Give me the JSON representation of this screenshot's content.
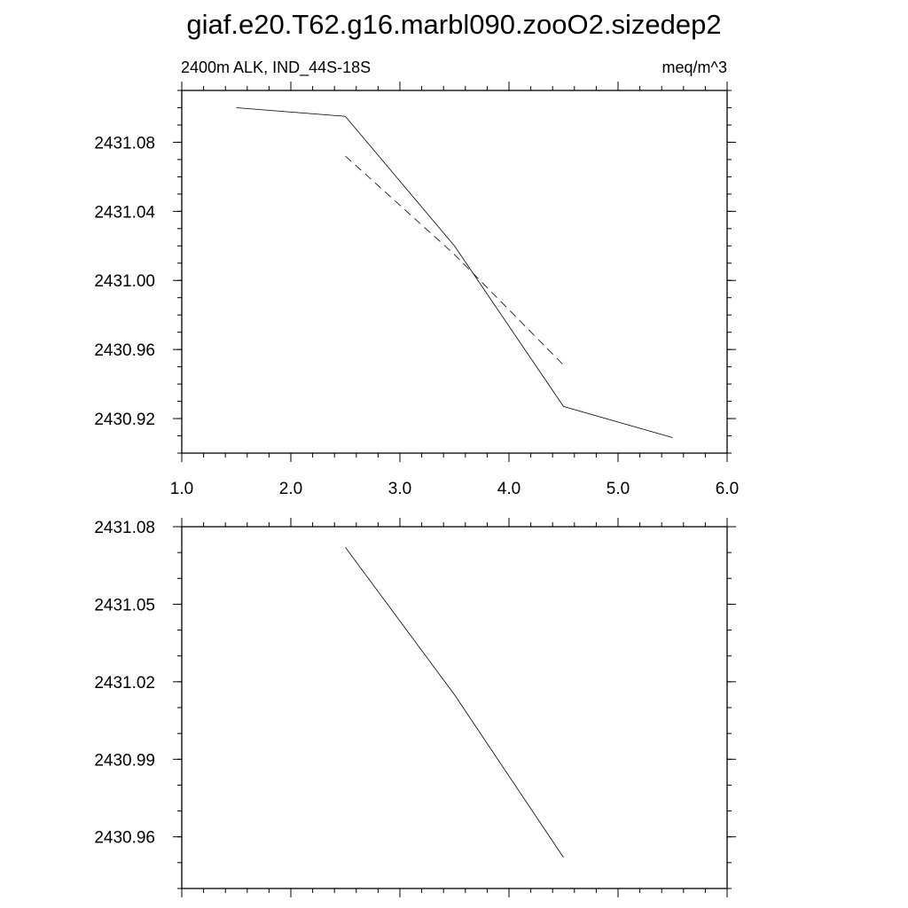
{
  "title": "giaf.e20.T62.g16.marbl090.zooO2.sizedep2",
  "chart_data": [
    {
      "type": "line",
      "subtitle_left": "2400m ALK, IND_44S-18S",
      "subtitle_right": "meq/m^3",
      "xlim": [
        1.0,
        6.0
      ],
      "ylim": [
        2430.9,
        2431.11
      ],
      "xticks": [
        "1.0",
        "2.0",
        "3.0",
        "4.0",
        "5.0",
        "6.0"
      ],
      "yticks": [
        "2430.92",
        "2430.96",
        "2431.00",
        "2431.04",
        "2431.08"
      ],
      "series": [
        {
          "style": "solid",
          "x": [
            1.5,
            2.5,
            3.5,
            4.5,
            5.5
          ],
          "y": [
            2431.1,
            2431.095,
            2431.02,
            2430.927,
            2430.909
          ]
        },
        {
          "style": "dashed",
          "x": [
            2.5,
            3.5,
            4.5
          ],
          "y": [
            2431.072,
            2431.015,
            2430.951
          ]
        }
      ]
    },
    {
      "type": "line",
      "xlim": [
        1.0,
        6.0
      ],
      "ylim": [
        2430.94,
        2431.08
      ],
      "yticks": [
        "2430.96",
        "2430.99",
        "2431.02",
        "2431.05",
        "2431.08"
      ],
      "series": [
        {
          "style": "solid",
          "x": [
            2.5,
            3.5,
            4.5
          ],
          "y": [
            2431.072,
            2431.015,
            2430.952
          ]
        }
      ]
    }
  ]
}
